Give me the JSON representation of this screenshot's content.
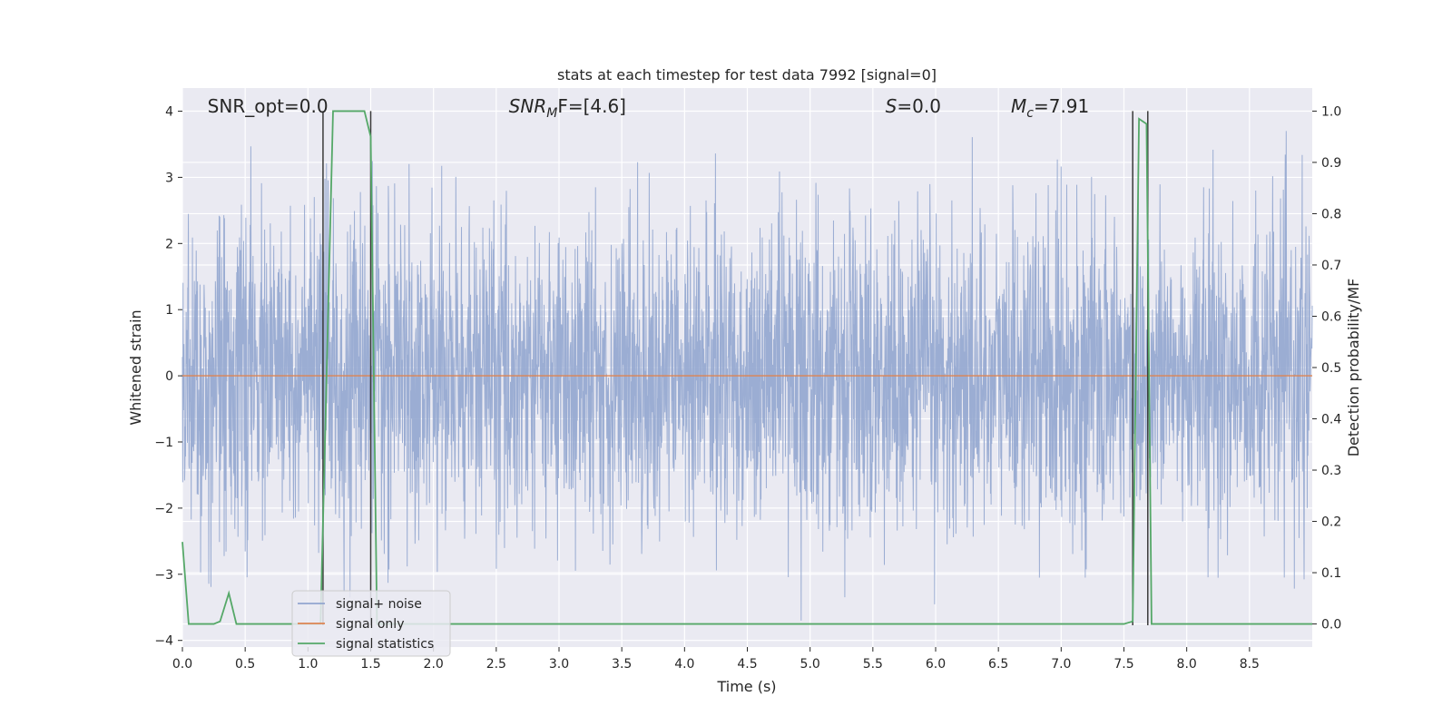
{
  "chart_data": {
    "type": "line",
    "title": "stats at each timestep for test data 7992 [signal=0]",
    "xlabel": "Time (s)",
    "ylabel_left": "Whitened strain",
    "ylabel_right": "Detection probability/MF",
    "xlim": [
      0.0,
      9.0
    ],
    "ylim_left": [
      -4.1,
      4.35
    ],
    "ylim_right": [
      -0.045,
      1.045
    ],
    "x_ticks": [
      "0.0",
      "0.5",
      "1.0",
      "1.5",
      "2.0",
      "2.5",
      "3.0",
      "3.5",
      "4.0",
      "4.5",
      "5.0",
      "5.5",
      "6.0",
      "6.5",
      "7.0",
      "7.5",
      "8.0",
      "8.5"
    ],
    "y_left_ticks": [
      "4",
      "3",
      "2",
      "1",
      "0",
      "−1",
      "−2",
      "−3",
      "−4"
    ],
    "y_right_ticks": [
      "1.0",
      "0.9",
      "0.8",
      "0.7",
      "0.6",
      "0.5",
      "0.4",
      "0.3",
      "0.2",
      "0.1",
      "0.0"
    ],
    "grid": true,
    "legend_position": "lower-left",
    "annotations": [
      {
        "name": "snr-opt",
        "text": "SNR_opt=0.0",
        "x": 0.2
      },
      {
        "name": "snr-mf",
        "prefix": "SNR",
        "sub": "M",
        "suffix": "F=[4.6]",
        "x": 2.6
      },
      {
        "name": "s-stat",
        "prefix": "S",
        "sub": "",
        "suffix": "=0.0",
        "x": 5.6
      },
      {
        "name": "mc",
        "prefix": "M",
        "sub": "c",
        "suffix": "=7.91",
        "x": 6.6
      }
    ],
    "vertical_lines": [
      1.12,
      1.5,
      7.57,
      7.69
    ],
    "series": [
      {
        "name": "signal+ noise",
        "color": "#92a6cf",
        "axis": "left",
        "note": "dense whitened-noise trace between approx -3.7 and 3.7"
      },
      {
        "name": "signal only",
        "color": "#dd8452",
        "axis": "left",
        "x": [
          0.0,
          9.0
        ],
        "y": [
          0.0,
          0.0
        ]
      },
      {
        "name": "signal statistics",
        "color": "#55a868",
        "axis": "right",
        "x": [
          0.0,
          0.05,
          0.1,
          0.25,
          0.3,
          0.37,
          0.43,
          0.5,
          1.0,
          1.1,
          1.15,
          1.2,
          1.45,
          1.5,
          1.55,
          1.6,
          2.0,
          3.0,
          4.0,
          5.0,
          6.0,
          7.0,
          7.5,
          7.57,
          7.62,
          7.65,
          7.68,
          7.72,
          7.78,
          8.0,
          8.5,
          9.0
        ],
        "y": [
          0.16,
          0.0,
          0.0,
          0.0,
          0.005,
          0.06,
          0.0,
          0.0,
          0.0,
          0.0,
          0.5,
          1.0,
          1.0,
          0.95,
          0.0,
          0.0,
          0.0,
          0.0,
          0.0,
          0.0,
          0.0,
          0.0,
          0.0,
          0.005,
          0.985,
          0.98,
          0.975,
          0.0,
          0.0,
          0.0,
          0.0,
          0.0
        ]
      }
    ]
  }
}
